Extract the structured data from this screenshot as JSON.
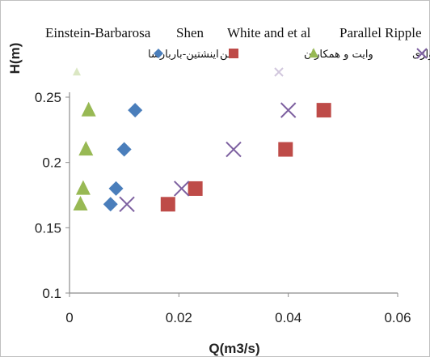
{
  "chart_data": {
    "type": "scatter",
    "xlabel": "Q(m3/s)",
    "ylabel": "H(m)",
    "xlim": [
      0,
      0.06
    ],
    "ylim": [
      0.1,
      0.25
    ],
    "xticks": [
      "0",
      "0.02",
      "0.04",
      "0.06"
    ],
    "yticks": [
      "0.1",
      "0.15",
      "0.2",
      "0.25"
    ],
    "grid": false,
    "legend_position": "top",
    "series": [
      {
        "name": "Einstein-Barbarosa",
        "name_fa": "اینشتین-باربارسا",
        "marker": "diamond",
        "color": "#4A7EBB",
        "points": [
          [
            0.012,
            0.24
          ],
          [
            0.01,
            0.21
          ],
          [
            0.0085,
            0.18
          ],
          [
            0.0075,
            0.168
          ]
        ]
      },
      {
        "name": "Shen",
        "name_fa": "شن",
        "marker": "square",
        "color": "#BE4B48",
        "points": [
          [
            0.0465,
            0.24
          ],
          [
            0.0395,
            0.21
          ],
          [
            0.023,
            0.18
          ],
          [
            0.018,
            0.168
          ]
        ]
      },
      {
        "name": "White and et al",
        "name_fa": "وایت و همکاران",
        "marker": "triangle",
        "color": "#98B954",
        "points": [
          [
            0.0035,
            0.24
          ],
          [
            0.003,
            0.21
          ],
          [
            0.0025,
            0.18
          ],
          [
            0.002,
            0.168
          ]
        ]
      },
      {
        "name": "Parallel Ripple",
        "name_fa": "ریپل موازی",
        "marker": "x",
        "color": "#7D60A0",
        "points": [
          [
            0.04,
            0.24
          ],
          [
            0.03,
            0.21
          ],
          [
            0.0205,
            0.18
          ],
          [
            0.0105,
            0.168
          ]
        ]
      }
    ]
  }
}
